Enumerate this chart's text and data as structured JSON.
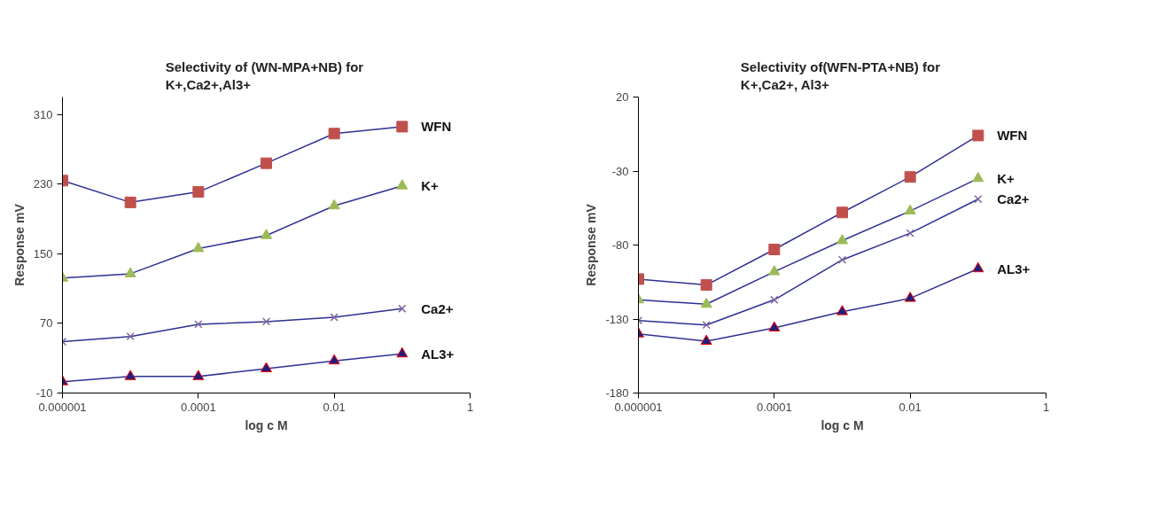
{
  "chart_data": [
    {
      "type": "line",
      "title": "Selectivity of (WN-MPA+NB)  for\nK+,Ca2+,Al3+",
      "xlabel": "log c M",
      "ylabel": "Response mV",
      "log": "x",
      "x": [
        1e-06,
        1e-05,
        0.0001,
        0.001,
        0.01,
        0.1
      ],
      "xlim": [
        1e-06,
        1
      ],
      "xticks": [
        {
          "value": 1e-06,
          "label": "0.000001"
        },
        {
          "value": 0.0001,
          "label": "0.0001"
        },
        {
          "value": 0.01,
          "label": "0.01"
        },
        1
      ],
      "ylim": [
        -10,
        330
      ],
      "yticks": [
        -10,
        70,
        150,
        230,
        310
      ],
      "grid": false,
      "legend": false,
      "series": [
        {
          "name": "WFN",
          "color": "#c0504d",
          "marker": "square",
          "values": [
            234,
            209,
            221,
            254,
            288,
            296
          ]
        },
        {
          "name": "K+",
          "color": "#9bbb59",
          "marker": "triangle",
          "values": [
            122,
            127,
            156,
            171,
            205,
            228
          ]
        },
        {
          "name": "Ca2+",
          "color": "#8064a2",
          "marker": "cross",
          "values": [
            49,
            55,
            69,
            72,
            77,
            87
          ]
        },
        {
          "name": "AL3+",
          "color": "#1f1f7a",
          "marker": "triangle",
          "values": [
            3,
            9,
            9,
            18,
            27,
            35
          ]
        }
      ]
    },
    {
      "type": "line",
      "title": "Selectivity of(WFN-PTA+NB)  for\nK+,Ca2+, Al3+",
      "xlabel": "log c M",
      "ylabel": "Response mV",
      "log": "x",
      "x": [
        1e-06,
        1e-05,
        0.0001,
        0.001,
        0.01,
        0.1
      ],
      "xlim": [
        1e-06,
        1
      ],
      "xticks": [
        {
          "value": 1e-06,
          "label": "0.000001"
        },
        {
          "value": 0.0001,
          "label": "0.0001"
        },
        {
          "value": 0.01,
          "label": "0.01"
        },
        1
      ],
      "ylim": [
        -180,
        20
      ],
      "yticks": [
        -180,
        -130,
        -80,
        -30,
        20
      ],
      "grid": false,
      "legend": false,
      "series": [
        {
          "name": "WFN",
          "color": "#c0504d",
          "marker": "square",
          "values": [
            -103,
            -107,
            -83,
            -58,
            -34,
            -6
          ]
        },
        {
          "name": "K+",
          "color": "#9bbb59",
          "marker": "triangle",
          "values": [
            -117,
            -120,
            -98,
            -77,
            -57,
            -35
          ]
        },
        {
          "name": "Ca2+",
          "color": "#8064a2",
          "marker": "cross",
          "values": [
            -131,
            -134,
            -117,
            -90,
            -72,
            -49
          ]
        },
        {
          "name": "AL3+",
          "color": "#1f1f7a",
          "marker": "triangle",
          "values": [
            -140,
            -145,
            -136,
            -125,
            -116,
            -96
          ]
        }
      ]
    }
  ]
}
